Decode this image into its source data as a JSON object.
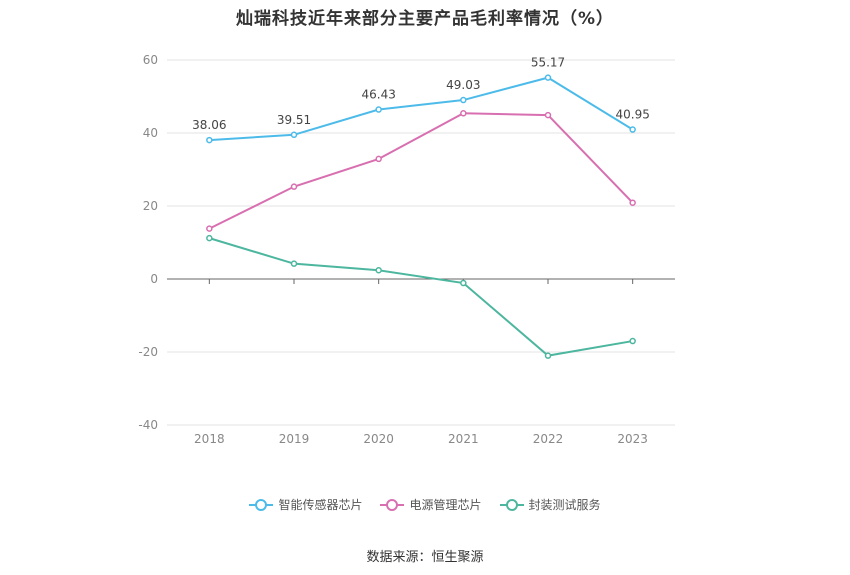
{
  "title": "灿瑞科技近年来部分主要产品毛利率情况（%）",
  "source": "数据来源：恒生聚源",
  "chart_data": {
    "type": "line",
    "title": "灿瑞科技近年来部分主要产品毛利率情况（%）",
    "categories": [
      "2018",
      "2019",
      "2020",
      "2021",
      "2022",
      "2023"
    ],
    "ylim": [
      -40,
      60
    ],
    "yticks": [
      -40,
      -20,
      0,
      20,
      40,
      60
    ],
    "grid": true,
    "legend_position": "bottom",
    "series": [
      {
        "name": "智能传感器芯片",
        "color": "#4dbbea",
        "values": [
          38.06,
          39.51,
          46.43,
          49.03,
          55.17,
          40.95
        ],
        "labels": [
          "38.06",
          "39.51",
          "46.43",
          "49.03",
          "55.17",
          "40.95"
        ]
      },
      {
        "name": "电源管理芯片",
        "color": "#d86fb0",
        "values": [
          13.8,
          25.3,
          32.9,
          45.4,
          44.9,
          20.9
        ]
      },
      {
        "name": "封装测试服务",
        "color": "#4cb69f",
        "values": [
          11.2,
          4.2,
          2.4,
          -1.1,
          -21.0,
          -17.0
        ]
      }
    ]
  }
}
